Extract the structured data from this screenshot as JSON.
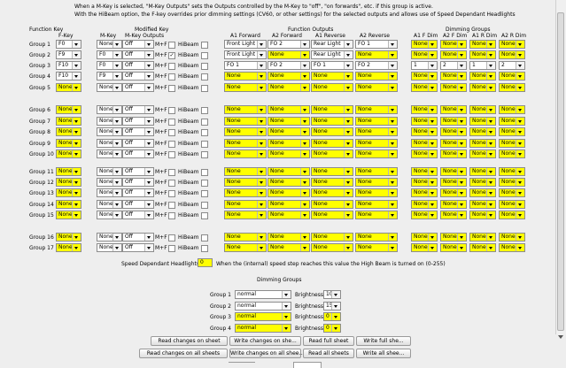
{
  "intro": [
    "When a M-Key is selected, \"M-Key Outputs\" sets the Outputs controlled by the M-Key to \"off\", \"on forwards\", etc. if this group is active.",
    "With the HiBeam option, the F-key overrides prior dimming settings (CV60, or other settings) for the selected outputs and allows use of Speed Dependant Headlights"
  ],
  "headers": {
    "function_key": "Function Key",
    "f_key": "F-Key",
    "modified_key": "Modified Key",
    "m_key": "M-Key",
    "m_key_outputs": "M-Key Outputs",
    "function_outputs": "Function Outputs",
    "a1_forward": "A1 Forward",
    "a2_forward": "A2 Forward",
    "a1_reverse": "A1 Reverse",
    "a2_reverse": "A2 Reverse",
    "dimming_groups": "Dimming Groups",
    "a1_f_dim": "A1 F Dim",
    "a2_f_dim": "A2 F Dim",
    "a1_r_dim": "A1 R Dim",
    "a2_r_dim": "A2 R Dim"
  },
  "mf_label": "M+F",
  "hibeam_label": "HiBeam",
  "groups": [
    {
      "label": "Group 1",
      "f": "F0",
      "m": "None",
      "mo": "Off",
      "mf": false,
      "hb": false,
      "a1f": "Front Light",
      "a2f": "FO 2",
      "a1r": "Rear Light",
      "a2r": "FO 1",
      "d1": "None",
      "d2": "None",
      "d3": "None",
      "d4": "None"
    },
    {
      "label": "Group 2",
      "f": "F9",
      "m": "F0",
      "mo": "Off",
      "mf": true,
      "hb": false,
      "a1f": "Front Light",
      "a2f": "None",
      "a1r": "Rear Light",
      "a2r": "None",
      "d1": "None",
      "d2": "None",
      "d3": "None",
      "d4": "None"
    },
    {
      "label": "Group 3",
      "f": "F10",
      "m": "F0",
      "mo": "Off",
      "mf": false,
      "hb": false,
      "a1f": "FO 1",
      "a2f": "FO 2",
      "a1r": "FO 1",
      "a2r": "FO 2",
      "d1": "1",
      "d2": "2",
      "d3": "1",
      "d4": "2"
    },
    {
      "label": "Group 4",
      "f": "F10",
      "m": "F9",
      "mo": "Off",
      "mf": false,
      "hb": false,
      "a1f": "None",
      "a2f": "None",
      "a1r": "None",
      "a2r": "None",
      "d1": "None",
      "d2": "None",
      "d3": "None",
      "d4": "None"
    },
    {
      "label": "Group 5",
      "f": "None",
      "m": "None",
      "mo": "Off",
      "mf": false,
      "hb": false,
      "a1f": "None",
      "a2f": "None",
      "a1r": "None",
      "a2r": "None",
      "d1": "None",
      "d2": "None",
      "d3": "None",
      "d4": "None"
    },
    {
      "label": "Group 6",
      "f": "None",
      "m": "None",
      "mo": "Off",
      "mf": false,
      "hb": false,
      "a1f": "None",
      "a2f": "None",
      "a1r": "None",
      "a2r": "None",
      "d1": "None",
      "d2": "None",
      "d3": "None",
      "d4": "None"
    },
    {
      "label": "Group 7",
      "f": "None",
      "m": "None",
      "mo": "Off",
      "mf": false,
      "hb": false,
      "a1f": "None",
      "a2f": "None",
      "a1r": "None",
      "a2r": "None",
      "d1": "None",
      "d2": "None",
      "d3": "None",
      "d4": "None"
    },
    {
      "label": "Group 8",
      "f": "None",
      "m": "None",
      "mo": "Off",
      "mf": false,
      "hb": false,
      "a1f": "None",
      "a2f": "None",
      "a1r": "None",
      "a2r": "None",
      "d1": "None",
      "d2": "None",
      "d3": "None",
      "d4": "None"
    },
    {
      "label": "Group 9",
      "f": "None",
      "m": "None",
      "mo": "Off",
      "mf": false,
      "hb": false,
      "a1f": "None",
      "a2f": "None",
      "a1r": "None",
      "a2r": "None",
      "d1": "None",
      "d2": "None",
      "d3": "None",
      "d4": "None"
    },
    {
      "label": "Group 10",
      "f": "None",
      "m": "None",
      "mo": "Off",
      "mf": false,
      "hb": false,
      "a1f": "None",
      "a2f": "None",
      "a1r": "None",
      "a2r": "None",
      "d1": "None",
      "d2": "None",
      "d3": "None",
      "d4": "None"
    },
    {
      "label": "Group 11",
      "f": "None",
      "m": "None",
      "mo": "Off",
      "mf": false,
      "hb": false,
      "a1f": "None",
      "a2f": "None",
      "a1r": "None",
      "a2r": "None",
      "d1": "None",
      "d2": "None",
      "d3": "None",
      "d4": "None"
    },
    {
      "label": "Group 12",
      "f": "None",
      "m": "None",
      "mo": "Off",
      "mf": false,
      "hb": false,
      "a1f": "None",
      "a2f": "None",
      "a1r": "None",
      "a2r": "None",
      "d1": "None",
      "d2": "None",
      "d3": "None",
      "d4": "None"
    },
    {
      "label": "Group 13",
      "f": "None",
      "m": "None",
      "mo": "Off",
      "mf": false,
      "hb": false,
      "a1f": "None",
      "a2f": "None",
      "a1r": "None",
      "a2r": "None",
      "d1": "None",
      "d2": "None",
      "d3": "None",
      "d4": "None"
    },
    {
      "label": "Group 14",
      "f": "None",
      "m": "None",
      "mo": "Off",
      "mf": false,
      "hb": false,
      "a1f": "None",
      "a2f": "None",
      "a1r": "None",
      "a2r": "None",
      "d1": "None",
      "d2": "None",
      "d3": "None",
      "d4": "None"
    },
    {
      "label": "Group 15",
      "f": "None",
      "m": "None",
      "mo": "Off",
      "mf": false,
      "hb": false,
      "a1f": "None",
      "a2f": "None",
      "a1r": "None",
      "a2r": "None",
      "d1": "None",
      "d2": "None",
      "d3": "None",
      "d4": "None"
    },
    {
      "label": "Group 16",
      "f": "None",
      "m": "None",
      "mo": "Off",
      "mf": false,
      "hb": false,
      "a1f": "None",
      "a2f": "None",
      "a1r": "None",
      "a2r": "None",
      "d1": "None",
      "d2": "None",
      "d3": "None",
      "d4": "None"
    },
    {
      "label": "Group 17",
      "f": "None",
      "m": "None",
      "mo": "Off",
      "mf": false,
      "hb": false,
      "a1f": "None",
      "a2f": "None",
      "a1r": "None",
      "a2r": "None",
      "d1": "None",
      "d2": "None",
      "d3": "None",
      "d4": "None"
    }
  ],
  "speed": {
    "label": "Speed Dependant Headlights",
    "value": "0",
    "note": "When the (internal) speed step reaches this value the High Beam is turned on (0-255)"
  },
  "dimming": {
    "title": "Dimming Groups",
    "brightness_label": "Brightness",
    "rows": [
      {
        "label": "Group 1",
        "mode": "normal",
        "brightness": "10"
      },
      {
        "label": "Group 2",
        "mode": "normal",
        "brightness": "15"
      },
      {
        "label": "Group 3",
        "mode": "normal",
        "brightness": "0"
      },
      {
        "label": "Group 4",
        "mode": "normal",
        "brightness": "0"
      }
    ]
  },
  "buttons_row1": [
    "Read changes on sheet",
    "Write changes on she...",
    "Read full sheet",
    "Write full she..."
  ],
  "buttons_row2": [
    "Read changes on all sheets",
    "Write changes on all shee...",
    "Read all sheets",
    "Write all shee..."
  ],
  "colors": {
    "highlight": "#ffff00",
    "background": "#eeeeee"
  }
}
